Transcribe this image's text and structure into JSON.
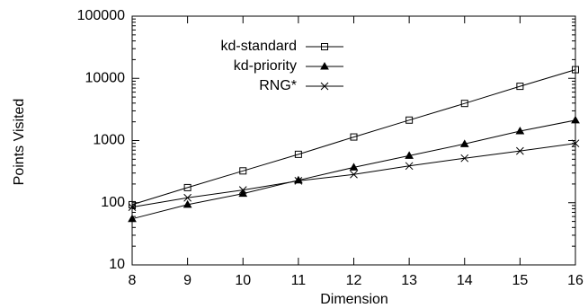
{
  "chart_data": {
    "type": "line",
    "title": "",
    "xlabel": "Dimension",
    "ylabel": "Points Visited",
    "y_scale": "log",
    "xlim": [
      8,
      16
    ],
    "ylim": [
      10,
      100000
    ],
    "x_ticks": [
      "8",
      "9",
      "10",
      "11",
      "12",
      "13",
      "14",
      "15",
      "16"
    ],
    "y_ticks": [
      "10",
      "100",
      "1000",
      "10000",
      "100000"
    ],
    "grid": false,
    "legend_position": "top-left",
    "x": [
      8,
      9,
      10,
      11,
      12,
      13,
      14,
      15,
      16
    ],
    "series": [
      {
        "name": "kd-standard",
        "marker": "square",
        "values": [
          93,
          175,
          325,
          600,
          1140,
          2130,
          3950,
          7450,
          13800
        ]
      },
      {
        "name": "kd-priority",
        "marker": "triangle",
        "values": [
          55,
          93,
          140,
          230,
          370,
          570,
          880,
          1420,
          2120
        ]
      },
      {
        "name": "RNG*",
        "marker": "cross",
        "values": [
          85,
          120,
          160,
          225,
          285,
          390,
          520,
          680,
          900
        ]
      }
    ]
  }
}
